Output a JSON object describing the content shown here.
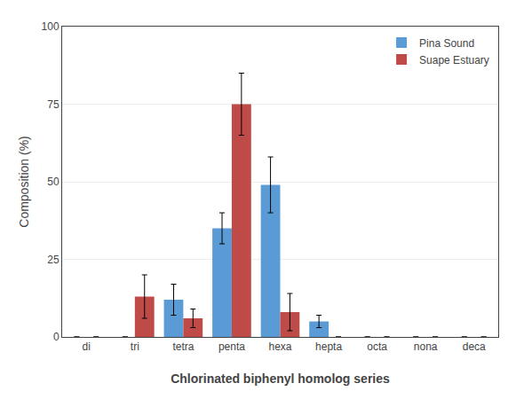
{
  "chart_data": {
    "type": "bar",
    "categories": [
      "di",
      "tri",
      "tetra",
      "penta",
      "hexa",
      "hepta",
      "octa",
      "nona",
      "deca"
    ],
    "series": [
      {
        "name": "Pina Sound",
        "color": "#5B9BD5",
        "values": [
          0,
          0,
          12,
          35,
          49,
          5,
          0,
          0,
          0
        ],
        "errors": [
          0,
          0,
          5,
          5,
          9,
          2,
          0,
          0,
          0
        ]
      },
      {
        "name": "Suape Estuary",
        "color": "#BE4B48",
        "values": [
          0,
          13,
          6,
          75,
          8,
          0,
          0,
          0,
          0
        ],
        "errors": [
          0,
          7,
          3,
          10,
          6,
          0,
          0,
          0,
          0
        ]
      }
    ],
    "xlabel": "Chlorinated biphenyl homolog series",
    "ylabel": "Composition (%)",
    "ylim": [
      0,
      100
    ],
    "yticks": [
      0,
      25,
      50,
      75,
      100
    ],
    "grid": true,
    "legend": "upper right"
  }
}
